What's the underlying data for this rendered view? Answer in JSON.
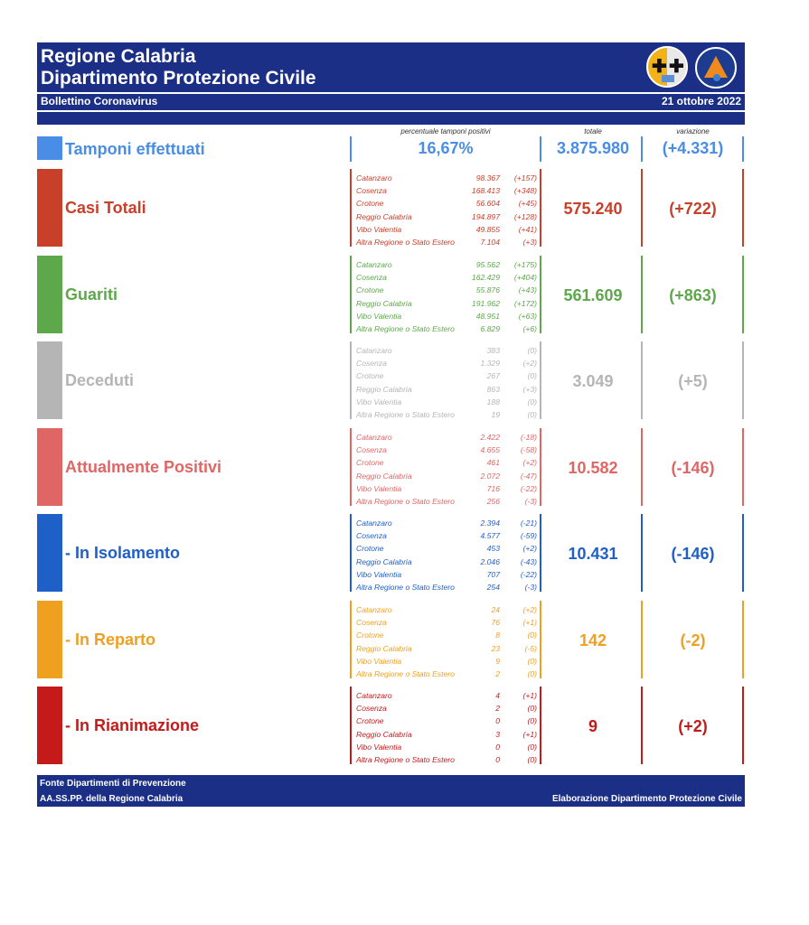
{
  "header": {
    "title_line1": "Regione Calabria",
    "title_line2": "Dipartimento Protezione Civile",
    "subtitle": "Bollettino Coronavirus",
    "date": "21 ottobre 2022"
  },
  "columns": {
    "percent": "percentuale tamponi positivi",
    "total": "totale",
    "variation": "variazione"
  },
  "tamponi": {
    "label": "Tamponi effettuati",
    "percent": "16,67%",
    "total": "3.875.980",
    "variation": "(+4.331)",
    "color": "#4a8de6"
  },
  "sections": [
    {
      "id": "casi-totali",
      "label": "Casi Totali",
      "color": "#c8402a",
      "total": "575.240",
      "variation": "(+722)",
      "rows": [
        {
          "province": "Catanzaro",
          "value": "98.367",
          "var": "(+157)"
        },
        {
          "province": "Cosenza",
          "value": "168.413",
          "var": "(+348)"
        },
        {
          "province": "Crotone",
          "value": "56.604",
          "var": "(+45)"
        },
        {
          "province": "Reggio Calabria",
          "value": "194.897",
          "var": "(+128)"
        },
        {
          "province": "Vibo Valentia",
          "value": "49.855",
          "var": "(+41)"
        },
        {
          "province": "Altra Regione o Stato Estero",
          "value": "7.104",
          "var": "(+3)"
        }
      ]
    },
    {
      "id": "guariti",
      "label": "Guariti",
      "color": "#5da84a",
      "total": "561.609",
      "variation": "(+863)",
      "rows": [
        {
          "province": "Catanzaro",
          "value": "95.562",
          "var": "(+175)"
        },
        {
          "province": "Cosenza",
          "value": "162.429",
          "var": "(+404)"
        },
        {
          "province": "Crotone",
          "value": "55.876",
          "var": "(+43)"
        },
        {
          "province": "Reggio Calabria",
          "value": "191.962",
          "var": "(+172)"
        },
        {
          "province": "Vibo Valentia",
          "value": "48.951",
          "var": "(+63)"
        },
        {
          "province": "Altra Regione o Stato Estero",
          "value": "6.829",
          "var": "(+6)"
        }
      ]
    },
    {
      "id": "deceduti",
      "label": "Deceduti",
      "color": "#b5b5b5",
      "total": "3.049",
      "variation": "(+5)",
      "rows": [
        {
          "province": "Catanzaro",
          "value": "383",
          "var": "(0)"
        },
        {
          "province": "Cosenza",
          "value": "1.329",
          "var": "(+2)"
        },
        {
          "province": "Crotone",
          "value": "267",
          "var": "(0)"
        },
        {
          "province": "Reggio Calabria",
          "value": "863",
          "var": "(+3)"
        },
        {
          "province": "Vibo Valentia",
          "value": "188",
          "var": "(0)"
        },
        {
          "province": "Altra Regione o Stato Estero",
          "value": "19",
          "var": "(0)"
        }
      ]
    },
    {
      "id": "attualmente-positivi",
      "label": "Attualmente Positivi",
      "color": "#e06666",
      "total": "10.582",
      "variation": "(-146)",
      "rows": [
        {
          "province": "Catanzaro",
          "value": "2.422",
          "var": "(-18)"
        },
        {
          "province": "Cosenza",
          "value": "4.655",
          "var": "(-58)"
        },
        {
          "province": "Crotone",
          "value": "461",
          "var": "(+2)"
        },
        {
          "province": "Reggio Calabria",
          "value": "2.072",
          "var": "(-47)"
        },
        {
          "province": "Vibo Valentia",
          "value": "716",
          "var": "(-22)"
        },
        {
          "province": "Altra Regione o Stato Estero",
          "value": "256",
          "var": "(-3)"
        }
      ]
    },
    {
      "id": "in-isolamento",
      "label": " - In Isolamento",
      "color": "#1f5fc8",
      "total": "10.431",
      "variation": "(-146)",
      "rows": [
        {
          "province": "Catanzaro",
          "value": "2.394",
          "var": "(-21)"
        },
        {
          "province": "Cosenza",
          "value": "4.577",
          "var": "(-59)"
        },
        {
          "province": "Crotone",
          "value": "453",
          "var": "(+2)"
        },
        {
          "province": "Reggio Calabria",
          "value": "2.046",
          "var": "(-43)"
        },
        {
          "province": "Vibo Valentia",
          "value": "707",
          "var": "(-22)"
        },
        {
          "province": "Altra Regione o Stato Estero",
          "value": "254",
          "var": "(-3)"
        }
      ]
    },
    {
      "id": "in-reparto",
      "label": " - In Reparto",
      "color": "#f0a020",
      "total": "142",
      "variation": "(-2)",
      "rows": [
        {
          "province": "Catanzaro",
          "value": "24",
          "var": "(+2)"
        },
        {
          "province": "Cosenza",
          "value": "76",
          "var": "(+1)"
        },
        {
          "province": "Crotone",
          "value": "8",
          "var": "(0)"
        },
        {
          "province": "Reggio Calabria",
          "value": "23",
          "var": "(-5)"
        },
        {
          "province": "Vibo Valentia",
          "value": "9",
          "var": "(0)"
        },
        {
          "province": "Altra Regione o Stato Estero",
          "value": "2",
          "var": "(0)"
        }
      ]
    },
    {
      "id": "in-rianimazione",
      "label": " - In Rianimazione",
      "color": "#c41a1a",
      "total": "9",
      "variation": "(+2)",
      "rows": [
        {
          "province": "Catanzaro",
          "value": "4",
          "var": "(+1)"
        },
        {
          "province": "Cosenza",
          "value": "2",
          "var": "(0)"
        },
        {
          "province": "Crotone",
          "value": "0",
          "var": "(0)"
        },
        {
          "province": "Reggio Calabria",
          "value": "3",
          "var": "(+1)"
        },
        {
          "province": "Vibo Valentia",
          "value": "0",
          "var": "(0)"
        },
        {
          "province": "Altra Regione o Stato Estero",
          "value": "0",
          "var": "(0)"
        }
      ]
    }
  ],
  "footer": {
    "line1": "Fonte Dipartimenti di Prevenzione",
    "line2": "AA.SS.PP.  della Regione Calabria",
    "credit": "Elaborazione Dipartimento Protezione Civile"
  },
  "header_color": "#1a2f85",
  "icons": [
    "regione-calabria-logo",
    "protezione-civile-logo"
  ]
}
